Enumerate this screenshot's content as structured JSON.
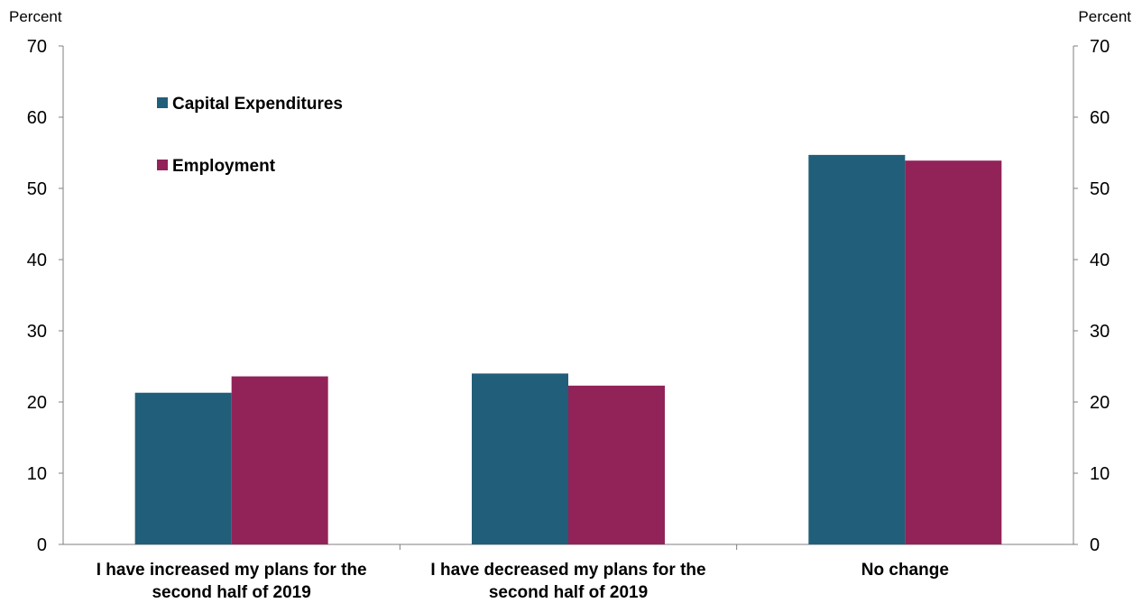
{
  "chart_data": {
    "type": "bar",
    "ylabel_left": "Percent",
    "ylabel_right": "Percent",
    "ylim": [
      0,
      70
    ],
    "yticks": [
      0,
      10,
      20,
      30,
      40,
      50,
      60,
      70
    ],
    "categories": [
      [
        "I have increased my plans for the",
        "second half of 2019"
      ],
      [
        "I have decreased my plans for the",
        "second half of 2019"
      ],
      [
        "No change"
      ]
    ],
    "series": [
      {
        "name": "Capital Expenditures",
        "color": "#215E79",
        "values": [
          21.3,
          24.0,
          54.7
        ]
      },
      {
        "name": "Employment",
        "color": "#922359",
        "values": [
          23.6,
          22.3,
          53.9
        ]
      }
    ],
    "grid": false,
    "legend_position": "top-left"
  }
}
